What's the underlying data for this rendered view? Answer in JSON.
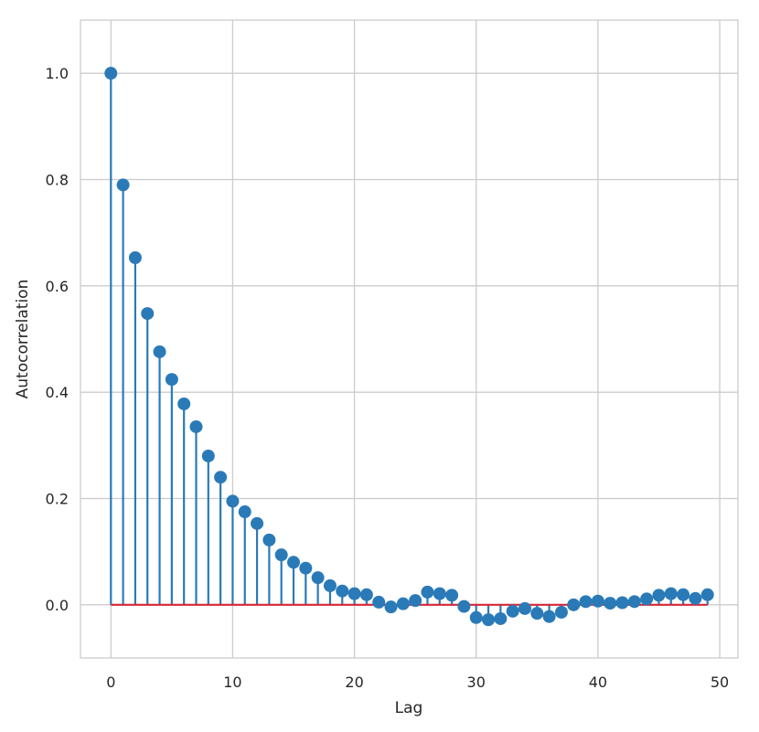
{
  "chart_data": {
    "type": "stem",
    "xlabel": "Lag",
    "ylabel": "Autocorrelation",
    "xlim": [
      -2.5,
      51.5
    ],
    "ylim": [
      -0.1,
      1.1
    ],
    "xticks": [
      0,
      10,
      20,
      30,
      40,
      50
    ],
    "yticks": [
      0.0,
      0.2,
      0.4,
      0.6,
      0.8,
      1.0
    ],
    "xtick_labels": [
      "0",
      "10",
      "20",
      "30",
      "40",
      "50"
    ],
    "ytick_labels": [
      "0.0",
      "0.2",
      "0.4",
      "0.6",
      "0.8",
      "1.0"
    ],
    "grid": true,
    "colors": {
      "stem": "#2a7ab8",
      "marker": "#2a7ab8",
      "baseline": "#d62738",
      "grid": "#cccccc",
      "frame": "#cccccc"
    },
    "x": [
      0,
      1,
      2,
      3,
      4,
      5,
      6,
      7,
      8,
      9,
      10,
      11,
      12,
      13,
      14,
      15,
      16,
      17,
      18,
      19,
      20,
      21,
      22,
      23,
      24,
      25,
      26,
      27,
      28,
      29,
      30,
      31,
      32,
      33,
      34,
      35,
      36,
      37,
      38,
      39,
      40,
      41,
      42,
      43,
      44,
      45,
      46,
      47,
      48,
      49
    ],
    "values": [
      1.0,
      0.79,
      0.653,
      0.548,
      0.476,
      0.424,
      0.378,
      0.335,
      0.28,
      0.24,
      0.195,
      0.175,
      0.153,
      0.122,
      0.094,
      0.08,
      0.069,
      0.051,
      0.036,
      0.026,
      0.021,
      0.019,
      0.005,
      -0.004,
      0.002,
      0.008,
      0.024,
      0.021,
      0.018,
      -0.003,
      -0.024,
      -0.028,
      -0.026,
      -0.012,
      -0.007,
      -0.016,
      -0.022,
      -0.014,
      0.0,
      0.006,
      0.007,
      0.003,
      0.004,
      0.006,
      0.011,
      0.018,
      0.021,
      0.019,
      0.012,
      0.019
    ]
  }
}
